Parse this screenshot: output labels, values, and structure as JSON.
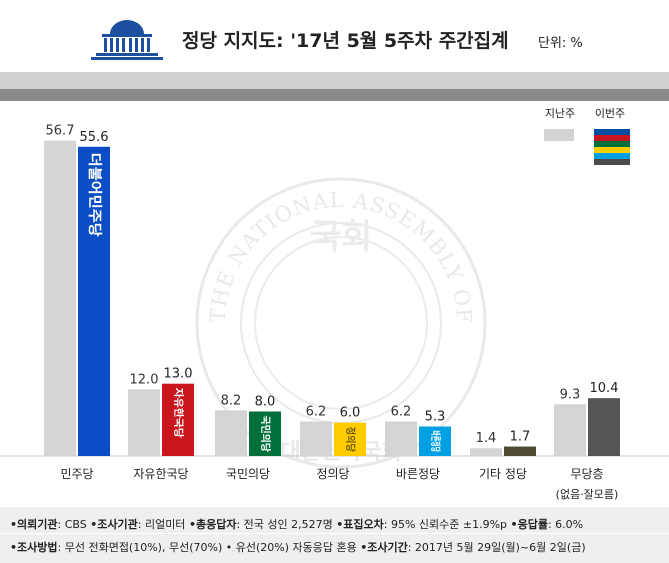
{
  "header": {
    "title": "정당 지지도: '17년 5월 5주차 주간집계",
    "unit": "단위: %"
  },
  "watermark": {
    "ring_text": "THE NATIONAL ASSEMBLY OF THE REPUBLIC OF KOREA",
    "bottom_text": "대한민국국회",
    "center_text": "국회"
  },
  "legend": {
    "prev_label": "지난주",
    "curr_label": "이번주",
    "prev_color": "#d4d4d4",
    "curr_stripe_colors": [
      "#004ea2",
      "#c9151e",
      "#006f3c",
      "#ffcc00",
      "#00a0e2",
      "#4a4a4a"
    ]
  },
  "chart_data": {
    "type": "bar",
    "categories": [
      "민주당",
      "자유한국당",
      "국민의당",
      "정의당",
      "바른정당",
      "기타 정당",
      "무당층"
    ],
    "category_sublabels": [
      "",
      "",
      "",
      "",
      "",
      "",
      "(없음·잘모름)"
    ],
    "series": [
      {
        "name": "지난주",
        "values": [
          56.7,
          12.0,
          8.2,
          6.2,
          6.2,
          1.4,
          9.3
        ],
        "color": "#d4d4d4"
      },
      {
        "name": "이번주",
        "values": [
          55.6,
          13.0,
          8.0,
          6.0,
          5.3,
          1.7,
          10.4
        ],
        "colors": [
          "#0a4dc4",
          "#c9151e",
          "#006f3c",
          "#ffcc00",
          "#00a0e2",
          "#4f4a30",
          "#555555"
        ]
      }
    ],
    "value_labels_prev": [
      "56.7",
      "12.0",
      "8.2",
      "6.2",
      "6.2",
      "1.4",
      "9.3"
    ],
    "value_labels_curr": [
      "55.6",
      "13.0",
      "8.0",
      "6.0",
      "5.3",
      "1.7",
      "10.4"
    ],
    "party_logos": [
      "더불어민주당",
      "자유한국당",
      "국민의당",
      "정의당",
      "바른정당",
      "",
      ""
    ],
    "ylim": [
      0,
      60
    ],
    "grid": false,
    "legend_position": "top-right"
  },
  "footer": {
    "line1": [
      {
        "label": "•의뢰기관",
        "value": ": CBS "
      },
      {
        "label": "•조사기관",
        "value": ": 리얼미터 "
      },
      {
        "label": "•총응답자",
        "value": ": 전국 성인 2,527명 "
      },
      {
        "label": "•표집오차",
        "value": ": 95% 신뢰수준 ±1.9%p "
      },
      {
        "label": "•응답률",
        "value": ": 6.0%"
      }
    ],
    "line2": [
      {
        "label": "•조사방법",
        "value": ": 무선 전화면접(10%), 무선(70%) • 유선(20%) 자동응답 혼용   "
      },
      {
        "label": "•조사기간",
        "value": ": 2017년 5월 29일(월)~6월 2일(금)"
      }
    ]
  }
}
